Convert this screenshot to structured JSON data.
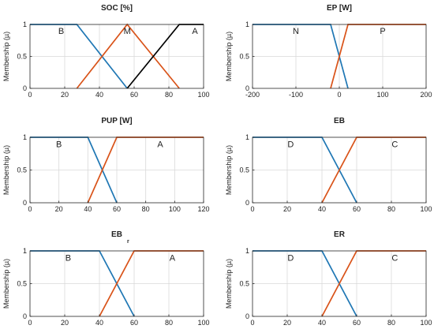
{
  "chart_data": [
    {
      "type": "line",
      "title": "SOC [%]",
      "title_sub": "",
      "ylabel": "Membership (µ)",
      "xlim": [
        0,
        100
      ],
      "ylim": [
        0,
        1
      ],
      "xticks": [
        0,
        20,
        40,
        60,
        80,
        100
      ],
      "yticks": [
        0,
        0.5,
        1
      ],
      "xtick_labels": [
        "0",
        "20",
        "40",
        "60",
        "80",
        "100"
      ],
      "ytick_labels": [
        "0",
        "0.5",
        "1"
      ],
      "grid": true,
      "series": [
        {
          "name": "B",
          "color": "#1f77b4",
          "x": [
            0,
            27,
            56
          ],
          "y": [
            1,
            1,
            0
          ],
          "label_at": [
            18,
            0.9
          ]
        },
        {
          "name": "M",
          "color": "#d95319",
          "x": [
            27,
            56,
            86
          ],
          "y": [
            0,
            1,
            0
          ],
          "label_at": [
            56,
            0.9
          ]
        },
        {
          "name": "A",
          "color": "#000000",
          "x": [
            56,
            86,
            100
          ],
          "y": [
            0,
            1,
            1
          ],
          "label_at": [
            95,
            0.9
          ]
        }
      ]
    },
    {
      "type": "line",
      "title": "EP [W]",
      "title_sub": "",
      "ylabel": "Membership (µ)",
      "xlim": [
        -200,
        200
      ],
      "ylim": [
        0,
        1
      ],
      "xticks": [
        -200,
        -100,
        0,
        100,
        200
      ],
      "yticks": [
        0,
        0.5,
        1
      ],
      "xtick_labels": [
        "-200",
        "-100",
        "0",
        "100",
        "200"
      ],
      "ytick_labels": [
        "0",
        "0.5",
        "1"
      ],
      "grid": true,
      "series": [
        {
          "name": "N",
          "color": "#1f77b4",
          "x": [
            -200,
            -20,
            20
          ],
          "y": [
            1,
            1,
            0
          ],
          "label_at": [
            -100,
            0.9
          ]
        },
        {
          "name": "P",
          "color": "#d95319",
          "x": [
            -20,
            20,
            200
          ],
          "y": [
            0,
            1,
            1
          ],
          "label_at": [
            100,
            0.9
          ]
        }
      ]
    },
    {
      "type": "line",
      "title": "PUP [W]",
      "title_sub": "",
      "ylabel": "Membership (µ)",
      "xlim": [
        0,
        120
      ],
      "ylim": [
        0,
        1
      ],
      "xticks": [
        0,
        20,
        40,
        60,
        80,
        100,
        120
      ],
      "yticks": [
        0,
        0.5,
        1
      ],
      "xtick_labels": [
        "0",
        "20",
        "40",
        "60",
        "80",
        "100",
        "120"
      ],
      "ytick_labels": [
        "0",
        "0.5",
        "1"
      ],
      "grid": true,
      "series": [
        {
          "name": "B",
          "color": "#1f77b4",
          "x": [
            0,
            40,
            60
          ],
          "y": [
            1,
            1,
            0
          ],
          "label_at": [
            20,
            0.9
          ]
        },
        {
          "name": "A",
          "color": "#d95319",
          "x": [
            40,
            60,
            120
          ],
          "y": [
            0,
            1,
            1
          ],
          "label_at": [
            90,
            0.9
          ]
        }
      ]
    },
    {
      "type": "line",
      "title": "EB",
      "title_sub": "",
      "ylabel": "Membership (µ)",
      "xlim": [
        0,
        100
      ],
      "ylim": [
        0,
        1
      ],
      "xticks": [
        0,
        20,
        40,
        60,
        80,
        100
      ],
      "yticks": [
        0,
        0.5,
        1
      ],
      "xtick_labels": [
        "0",
        "20",
        "40",
        "60",
        "80",
        "100"
      ],
      "ytick_labels": [
        "0",
        "0.5",
        "1"
      ],
      "grid": true,
      "series": [
        {
          "name": "D",
          "color": "#1f77b4",
          "x": [
            0,
            40,
            60
          ],
          "y": [
            1,
            1,
            0
          ],
          "label_at": [
            22,
            0.9
          ]
        },
        {
          "name": "C",
          "color": "#d95319",
          "x": [
            40,
            60,
            100
          ],
          "y": [
            0,
            1,
            1
          ],
          "label_at": [
            82,
            0.9
          ]
        }
      ]
    },
    {
      "type": "line",
      "title": "EB",
      "title_sub": "r",
      "ylabel": "Membership (µ)",
      "xlim": [
        0,
        100
      ],
      "ylim": [
        0,
        1
      ],
      "xticks": [
        0,
        20,
        40,
        60,
        80,
        100
      ],
      "yticks": [
        0,
        0.5,
        1
      ],
      "xtick_labels": [
        "0",
        "20",
        "40",
        "60",
        "80",
        "100"
      ],
      "ytick_labels": [
        "0",
        "0.5",
        "1"
      ],
      "grid": true,
      "series": [
        {
          "name": "B",
          "color": "#1f77b4",
          "x": [
            0,
            40,
            60
          ],
          "y": [
            1,
            1,
            0
          ],
          "label_at": [
            22,
            0.9
          ]
        },
        {
          "name": "A",
          "color": "#d95319",
          "x": [
            40,
            60,
            100
          ],
          "y": [
            0,
            1,
            1
          ],
          "label_at": [
            82,
            0.9
          ]
        }
      ]
    },
    {
      "type": "line",
      "title": "ER",
      "title_sub": "",
      "ylabel": "Membership (µ)",
      "xlim": [
        0,
        100
      ],
      "ylim": [
        0,
        1
      ],
      "xticks": [
        0,
        20,
        40,
        60,
        80,
        100
      ],
      "yticks": [
        0,
        0.5,
        1
      ],
      "xtick_labels": [
        "0",
        "20",
        "40",
        "60",
        "80",
        "100"
      ],
      "ytick_labels": [
        "0",
        "0.5",
        "1"
      ],
      "grid": true,
      "series": [
        {
          "name": "D",
          "color": "#1f77b4",
          "x": [
            0,
            40,
            60
          ],
          "y": [
            1,
            1,
            0
          ],
          "label_at": [
            22,
            0.9
          ]
        },
        {
          "name": "C",
          "color": "#d95319",
          "x": [
            40,
            60,
            100
          ],
          "y": [
            0,
            1,
            1
          ],
          "label_at": [
            82,
            0.9
          ]
        }
      ]
    }
  ]
}
